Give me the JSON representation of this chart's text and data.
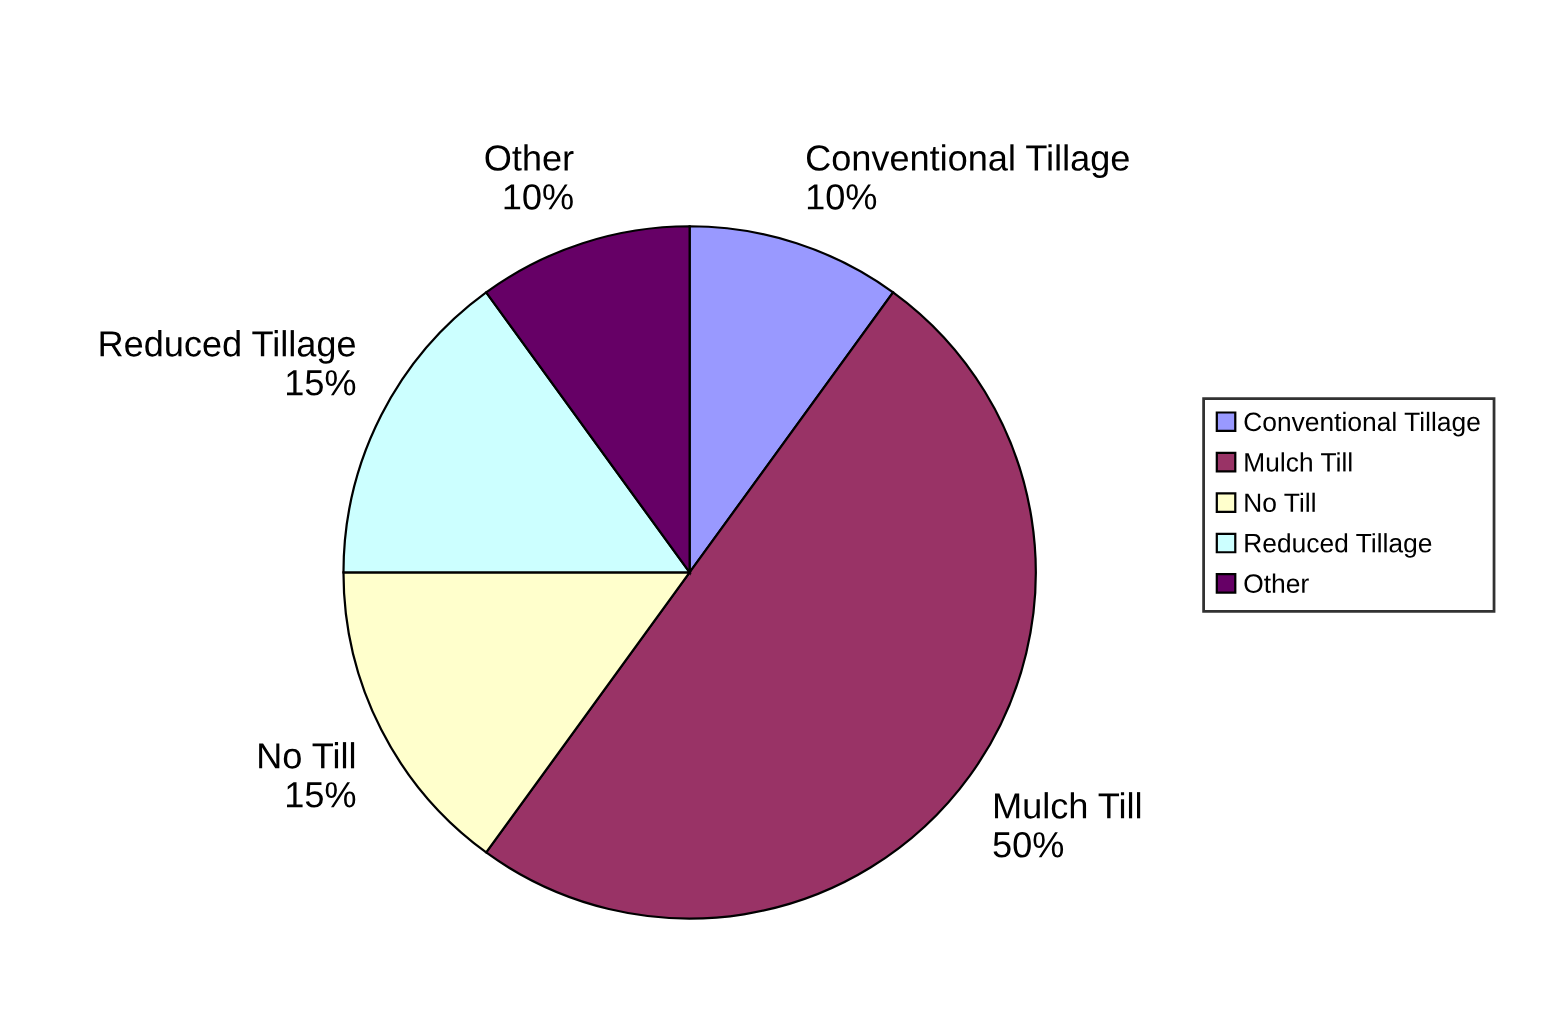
{
  "chart_data": {
    "type": "pie",
    "categories": [
      "Conventional Tillage",
      "Mulch Till",
      "No Till",
      "Reduced Tillage",
      "Other"
    ],
    "values": [
      10,
      50,
      15,
      15,
      10
    ],
    "value_labels": [
      "10%",
      "50%",
      "15%",
      "15%",
      "10%"
    ],
    "colors": [
      "#9999ff",
      "#993366",
      "#ffffcc",
      "#ccffff",
      "#660066"
    ],
    "legend": "right"
  }
}
